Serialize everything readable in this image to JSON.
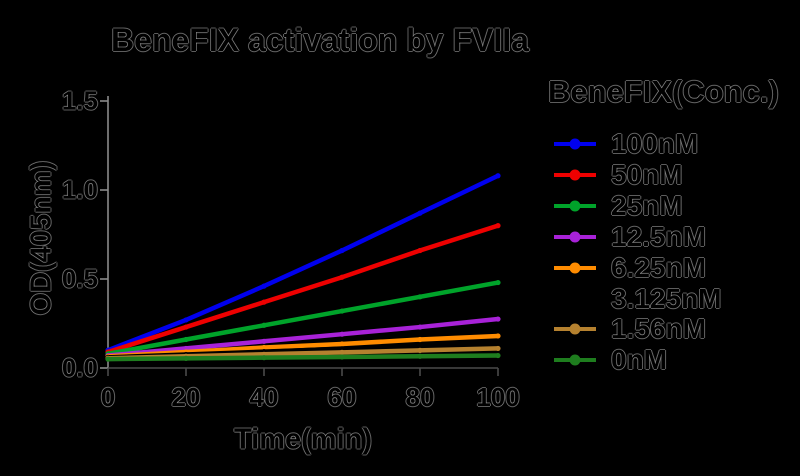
{
  "title": "BeneFIX activation by FVIIa",
  "axes": {
    "x_label": "Time(min)",
    "y_label": "OD(405nm)",
    "x_ticks": [
      "0",
      "20",
      "40",
      "60",
      "80",
      "100"
    ],
    "y_ticks": [
      "0.0",
      "0.5",
      "1.0",
      "1.5"
    ]
  },
  "legend": {
    "title": "BeneFIX(Conc.)",
    "entries": [
      "100nM",
      "50nM",
      "25nM",
      "12.5nM",
      "6.25nM",
      "3.125nM",
      "1.56nM",
      "0nM"
    ]
  },
  "chart_data": {
    "type": "line",
    "title": "BeneFIX activation by FVIIa",
    "xlabel": "Time(min)",
    "ylabel": "OD(405nm)",
    "xlim": [
      0,
      100
    ],
    "ylim": [
      0.0,
      1.5
    ],
    "grid": false,
    "legend_position": "right",
    "legend_title": "BeneFIX(Conc.)",
    "x": [
      0,
      20,
      40,
      60,
      80,
      100
    ],
    "series": [
      {
        "name": "100nM",
        "color": "#0000ee",
        "values": [
          0.1,
          0.27,
          0.46,
          0.66,
          0.87,
          1.08
        ]
      },
      {
        "name": "50nM",
        "color": "#ee0000",
        "values": [
          0.09,
          0.23,
          0.37,
          0.51,
          0.66,
          0.8
        ]
      },
      {
        "name": "25nM",
        "color": "#00a32a",
        "values": [
          0.08,
          0.16,
          0.24,
          0.32,
          0.4,
          0.48
        ]
      },
      {
        "name": "12.5nM",
        "color": "#a822d8",
        "values": [
          0.07,
          0.11,
          0.15,
          0.19,
          0.23,
          0.275
        ]
      },
      {
        "name": "6.25nM",
        "color": "#ff8c00",
        "values": [
          0.065,
          0.09,
          0.115,
          0.135,
          0.16,
          0.18
        ]
      },
      {
        "name": "3.125nM",
        "color": "#000000",
        "values": [
          0.06,
          0.076,
          0.092,
          0.108,
          0.124,
          0.14
        ]
      },
      {
        "name": "1.56nM",
        "color": "#b5812f",
        "values": [
          0.055,
          0.066,
          0.077,
          0.088,
          0.099,
          0.11
        ]
      },
      {
        "name": "0nM",
        "color": "#1e7d1e",
        "values": [
          0.05,
          0.054,
          0.058,
          0.062,
          0.066,
          0.07
        ]
      }
    ]
  },
  "style_colors": {
    "background": "#000000",
    "y_spine": "#8a8a8a",
    "x_spine": "#4a4a4a",
    "tick_mark": "#8a8a8a"
  }
}
